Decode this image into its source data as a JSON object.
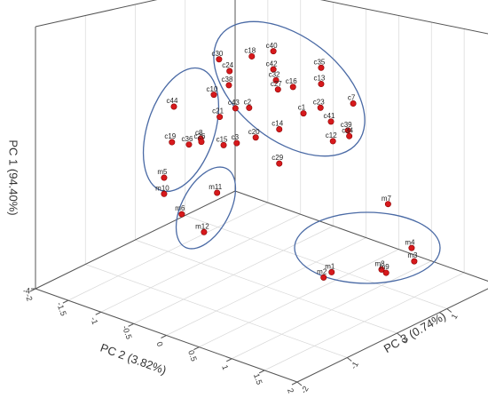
{
  "chart_data": {
    "type": "scatter3d",
    "xlabel": "PC 2 (3.82%)",
    "ylabel": "PC 1 (94.40%)",
    "zlabel": "PC 3 (0.74%)",
    "xlim": [
      -2,
      2
    ],
    "ylim": [
      -4,
      6
    ],
    "zlim": [
      -2,
      2
    ],
    "xticks": [
      -2,
      -1.5,
      -1,
      -0.5,
      0,
      0.5,
      1,
      1.5,
      2
    ],
    "yticks": [
      -4
    ],
    "zticks": [
      -2,
      -1,
      0,
      1,
      2
    ],
    "grid": true,
    "color": "#d7191c",
    "labels": [
      "c30",
      "c18",
      "c40",
      "c24",
      "c35",
      "c42",
      "c32",
      "c38",
      "c16",
      "c13",
      "c10",
      "c27",
      "c43",
      "c2",
      "c1",
      "c23",
      "c7",
      "c41",
      "c14",
      "c39",
      "c34",
      "c20",
      "c12",
      "c29",
      "c44",
      "c21",
      "c8",
      "c19",
      "c36",
      "c26",
      "c15",
      "c3",
      "m5",
      "m10",
      "m11",
      "m6",
      "m12",
      "m7",
      "m4",
      "m3",
      "m8",
      "m9",
      "m1",
      "m2"
    ],
    "x": [
      -0.72,
      -0.22,
      0.11,
      -0.56,
      0.84,
      0.11,
      0.15,
      -0.57,
      0.41,
      0.84,
      -0.8,
      0.18,
      -0.47,
      -0.26,
      0.57,
      0.83,
      1.33,
      0.99,
      0.2,
      1.25,
      1.27,
      -0.16,
      1.02,
      0.2,
      -0.8,
      -0.1,
      -0.39,
      -0.83,
      -0.57,
      -0.38,
      -0.04,
      0.16,
      -0.95,
      -0.95,
      -0.14,
      -0.68,
      -0.34,
      1.1,
      1.46,
      1.5,
      1.0,
      1.07,
      0.39,
      0.42
    ],
    "y": [
      4.7,
      5.21,
      5.67,
      4.34,
      5.55,
      4.93,
      4.52,
      3.75,
      4.45,
      4.9,
      3.17,
      4.17,
      2.88,
      3.07,
      3.51,
      3.94,
      4.49,
      3.51,
      2.57,
      3.36,
      3.15,
      1.94,
      2.75,
      1.18,
      3.24,
      3.42,
      2.31,
      1.79,
      1.92,
      2.19,
      2.35,
      2.6,
      0.26,
      -0.39,
      0.37,
      -0.96,
      -1.37,
      -0.59,
      -2.06,
      -2.56,
      -3.35,
      -3.42,
      -3.84,
      -3.83
    ],
    "z": [
      0,
      0,
      0,
      0,
      0,
      0,
      0,
      0,
      0,
      0,
      0,
      0,
      0,
      0,
      0,
      0,
      0,
      0,
      0,
      0,
      0,
      0,
      0,
      0,
      -0.8,
      -0.8,
      -0.8,
      -0.8,
      -0.8,
      -0.8,
      -0.8,
      -0.8,
      -0.8,
      -0.8,
      -0.8,
      -0.8,
      -0.8,
      1,
      1,
      1,
      1,
      1,
      0.8,
      0.6
    ]
  }
}
